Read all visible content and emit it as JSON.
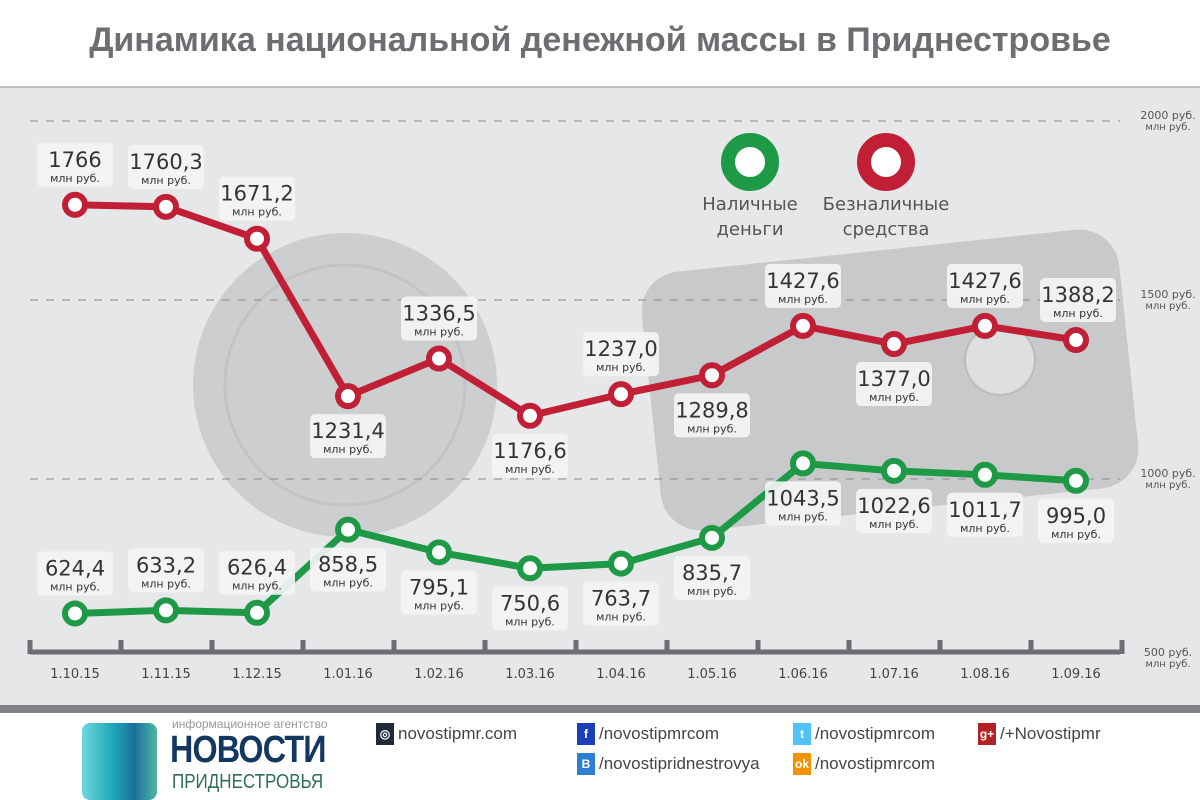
{
  "title": "Динамика национальной денежной массы в Приднестровье",
  "chart_data": {
    "type": "line",
    "title": "Динамика национальной денежной массы в Приднестровье",
    "categories": [
      "1.10.15",
      "1.11.15",
      "1.12.15",
      "1.01.16",
      "1.02.16",
      "1.03.16",
      "1.04.16",
      "1.05.16",
      "1.06.16",
      "1.07.16",
      "1.08.16",
      "1.09.16"
    ],
    "unit": "млн руб.",
    "ylim": [
      500,
      2000
    ],
    "yticks": [
      {
        "value": 2000,
        "label": "2000 руб.",
        "sub": "млн руб."
      },
      {
        "value": 1500,
        "label": "1500 руб.",
        "sub": "млн руб."
      },
      {
        "value": 1000,
        "label": "1000 руб.",
        "sub": "млн руб."
      },
      {
        "value": 500,
        "label": "500 руб.",
        "sub": "млн руб."
      }
    ],
    "series": [
      {
        "name": "Безналичные средства",
        "legend": [
          "Безналичные",
          "средства"
        ],
        "color": "#c01f36",
        "values": [
          1766,
          1760.3,
          1671.2,
          1231.4,
          1336.5,
          1176.6,
          1237.0,
          1289.8,
          1427.6,
          1377.0,
          1427.6,
          1388.2
        ],
        "labels": [
          "1766",
          "1760,3",
          "1671,2",
          "1231,4",
          "1336,5",
          "1176,6",
          "1237,0",
          "1289,8",
          "1427,6",
          "1377,0",
          "1427,6",
          "1388,2"
        ],
        "label_side": [
          "above",
          "above",
          "above",
          "below",
          "above",
          "below",
          "above",
          "below",
          "above",
          "below",
          "above",
          "above"
        ]
      },
      {
        "name": "Наличные деньги",
        "legend": [
          "Наличные",
          "деньги"
        ],
        "color": "#1e9a47",
        "values": [
          624.4,
          633.2,
          626.4,
          858.5,
          795.1,
          750.6,
          763.7,
          835.7,
          1043.5,
          1022.6,
          1011.7,
          995.0
        ],
        "labels": [
          "624,4",
          "633,2",
          "626,4",
          "858,5",
          "795,1",
          "750,6",
          "763,7",
          "835,7",
          "1043,5",
          "1022,6",
          "1011,7",
          "995,0"
        ],
        "label_side": [
          "above",
          "above",
          "above",
          "below",
          "below",
          "below",
          "below",
          "below",
          "below",
          "below",
          "below",
          "below"
        ]
      }
    ]
  },
  "footer": {
    "agency": "информационное агентство",
    "brand": "НОВОСТИ",
    "region": "ПРИДНЕСТРОВЬЯ",
    "site": "novostipmr.com",
    "facebook": "/novostipmrcom",
    "twitter": "/novostipmrcom",
    "gplus": "/+Novostipmr",
    "vk": "/novostipridnestrovya",
    "ok": "/novostipmrcom",
    "colors": {
      "facebook": "#1a3fb8",
      "twitter": "#4fc3f7",
      "gplus": "#b22222",
      "vk": "#2f7fd1",
      "ok": "#f39200",
      "site": "#1f2a3a"
    }
  }
}
